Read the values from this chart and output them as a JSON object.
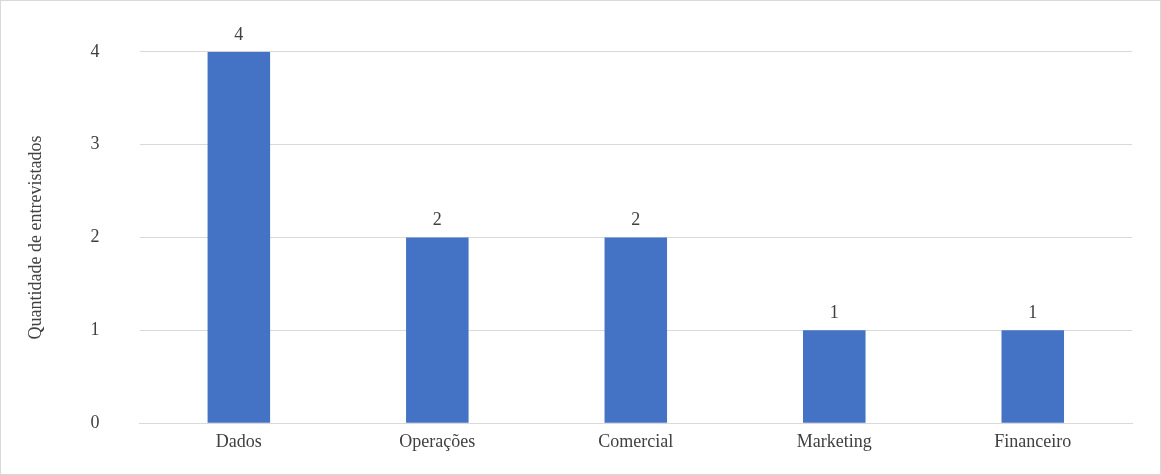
{
  "chart_data": {
    "type": "bar",
    "ylabel": "Quantidade de entrevistados",
    "categories": [
      "Dados",
      "Operações",
      "Comercial",
      "Marketing",
      "Financeiro"
    ],
    "values": [
      4,
      2,
      2,
      1,
      1
    ],
    "color": "#4472c4",
    "ylim": [
      0,
      4
    ],
    "yticks": [
      0,
      1,
      2,
      3,
      4
    ],
    "grid": "y",
    "data_labels": true,
    "legend": false
  }
}
